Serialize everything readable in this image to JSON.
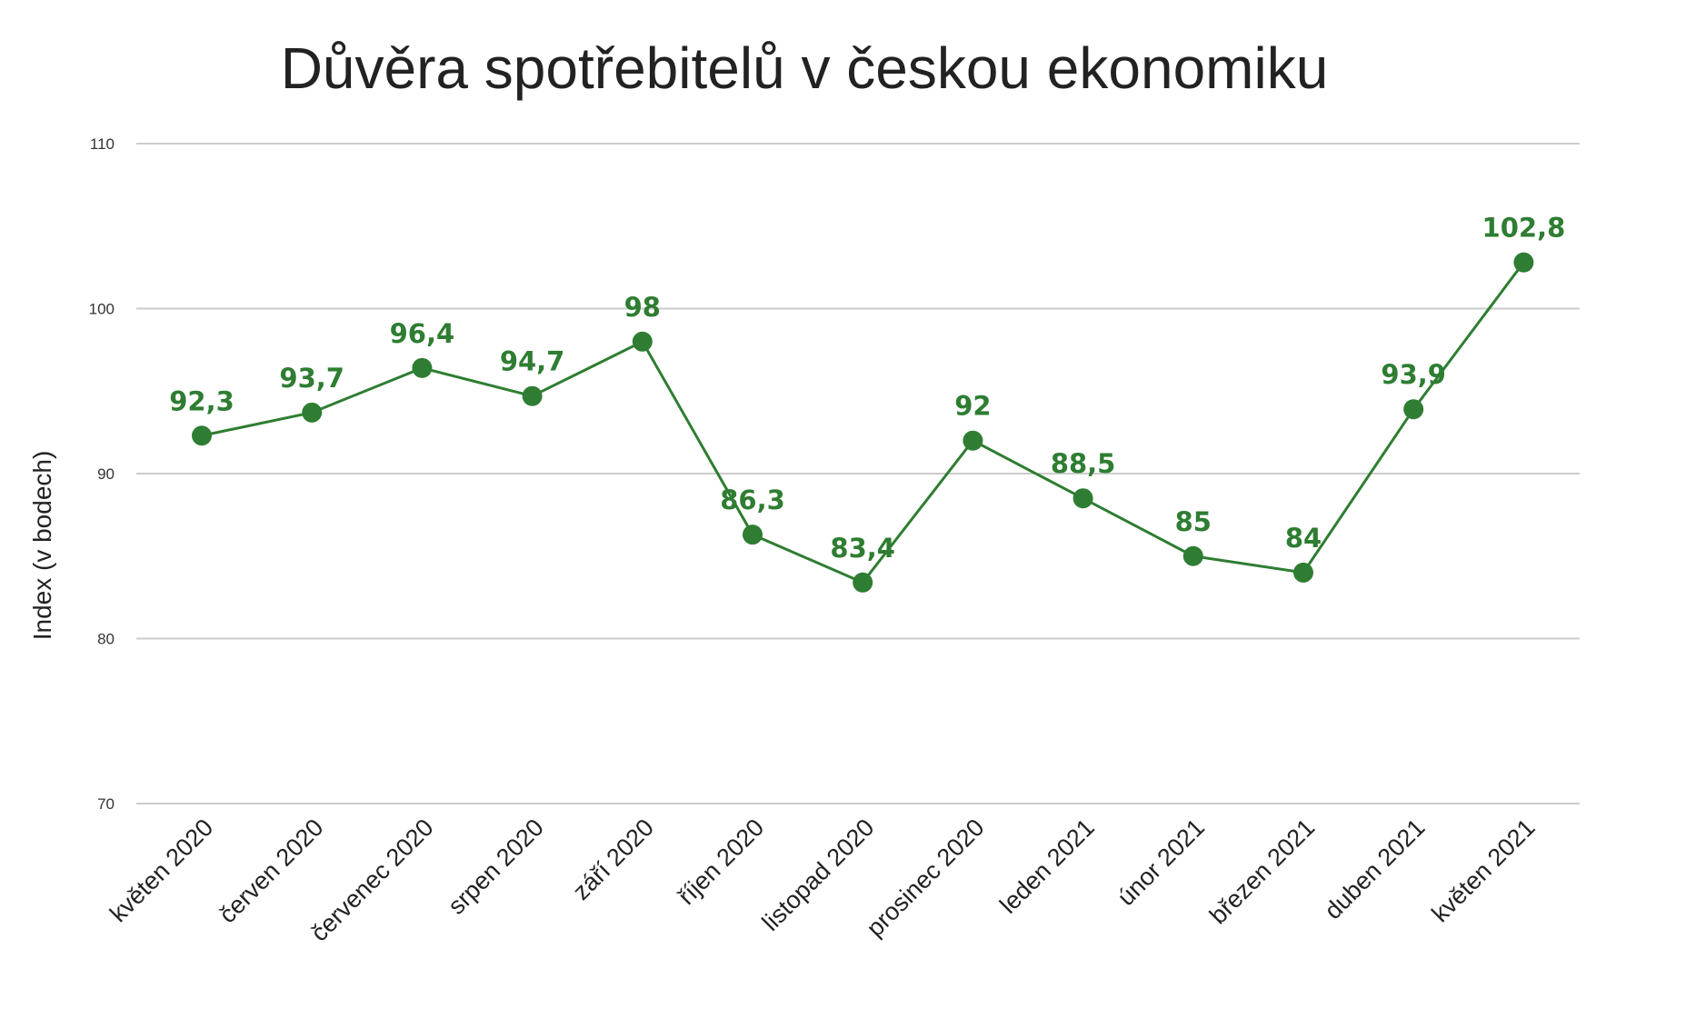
{
  "title": "Důvěra spotřebitelů v českou ekonomiku",
  "chart_data": {
    "type": "line",
    "title": "Důvěra spotřebitelů v českou ekonomiku",
    "xlabel": "",
    "ylabel": "Index (v bodech)",
    "ylim": [
      70,
      110
    ],
    "yticks": [
      70,
      80,
      90,
      100,
      110
    ],
    "ytick_labels": [
      "70",
      "80",
      "90",
      "100",
      "110"
    ],
    "grid": true,
    "legend": "none",
    "categories": [
      "květen 2020",
      "červen 2020",
      "červenec 2020",
      "srpen 2020",
      "září 2020",
      "říjen 2020",
      "listopad 2020",
      "prosinec 2020",
      "leden 2021",
      "únor 2021",
      "březen 2021",
      "duben 2021",
      "květen 2021"
    ],
    "series": [
      {
        "values": [
          92.3,
          93.7,
          96.4,
          94.7,
          98,
          86.3,
          83.4,
          92,
          88.5,
          85,
          84,
          93.9,
          102.8
        ],
        "labels": [
          "92,3",
          "93,7",
          "96,4",
          "94,7",
          "98",
          "86,3",
          "83,4",
          "92",
          "88,5",
          "85",
          "84",
          "93,9",
          "102,8"
        ],
        "color": "#2e7d32"
      }
    ]
  }
}
